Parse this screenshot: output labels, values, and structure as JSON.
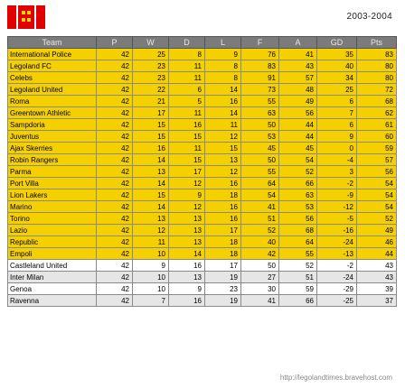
{
  "season": "2003-2004",
  "credit": "http://legolandtimes.bravehost.com",
  "logo": {
    "icon": "lego-brick-logo-icon",
    "color": "#e00000",
    "stud_color": "#ffd200"
  },
  "headers": [
    "Team",
    "P",
    "W",
    "D",
    "L",
    "F",
    "A",
    "GD",
    "Pts"
  ],
  "rows": [
    {
      "style": "yel",
      "cells": [
        "International Police",
        "42",
        "25",
        "8",
        "9",
        "76",
        "41",
        "35",
        "83"
      ]
    },
    {
      "style": "yel",
      "cells": [
        "Legoland FC",
        "42",
        "23",
        "11",
        "8",
        "83",
        "43",
        "40",
        "80"
      ]
    },
    {
      "style": "yel",
      "cells": [
        "Celebs",
        "42",
        "23",
        "11",
        "8",
        "91",
        "57",
        "34",
        "80"
      ]
    },
    {
      "style": "yel",
      "cells": [
        "Legoland United",
        "42",
        "22",
        "6",
        "14",
        "73",
        "48",
        "25",
        "72"
      ]
    },
    {
      "style": "yel",
      "cells": [
        "Roma",
        "42",
        "21",
        "5",
        "16",
        "55",
        "49",
        "6",
        "68"
      ]
    },
    {
      "style": "yel",
      "cells": [
        "Greentown Athletic",
        "42",
        "17",
        "11",
        "14",
        "63",
        "56",
        "7",
        "62"
      ]
    },
    {
      "style": "yel",
      "cells": [
        "Sampdoria",
        "42",
        "15",
        "16",
        "11",
        "50",
        "44",
        "6",
        "61"
      ]
    },
    {
      "style": "yel",
      "cells": [
        "Juventus",
        "42",
        "15",
        "15",
        "12",
        "53",
        "44",
        "9",
        "60"
      ]
    },
    {
      "style": "yel",
      "cells": [
        "Ajax Skerries",
        "42",
        "16",
        "11",
        "15",
        "45",
        "45",
        "0",
        "59"
      ]
    },
    {
      "style": "yel",
      "cells": [
        "Robin Rangers",
        "42",
        "14",
        "15",
        "13",
        "50",
        "54",
        "-4",
        "57"
      ]
    },
    {
      "style": "yel",
      "cells": [
        "Parma",
        "42",
        "13",
        "17",
        "12",
        "55",
        "52",
        "3",
        "56"
      ]
    },
    {
      "style": "yel",
      "cells": [
        "Port Villa",
        "42",
        "14",
        "12",
        "16",
        "64",
        "66",
        "-2",
        "54"
      ]
    },
    {
      "style": "yel",
      "cells": [
        "Lion Lakers",
        "42",
        "15",
        "9",
        "18",
        "54",
        "63",
        "-9",
        "54"
      ]
    },
    {
      "style": "yel",
      "cells": [
        "Marino",
        "42",
        "14",
        "12",
        "16",
        "41",
        "53",
        "-12",
        "54"
      ]
    },
    {
      "style": "yel",
      "cells": [
        "Torino",
        "42",
        "13",
        "13",
        "16",
        "51",
        "56",
        "-5",
        "52"
      ]
    },
    {
      "style": "yel",
      "cells": [
        "Lazio",
        "42",
        "12",
        "13",
        "17",
        "52",
        "68",
        "-16",
        "49"
      ]
    },
    {
      "style": "yel",
      "cells": [
        "Republic",
        "42",
        "11",
        "13",
        "18",
        "40",
        "64",
        "-24",
        "46"
      ]
    },
    {
      "style": "yel",
      "cells": [
        "Empoli",
        "42",
        "10",
        "14",
        "18",
        "42",
        "55",
        "-13",
        "44"
      ]
    },
    {
      "style": "white",
      "cells": [
        "Castleland United",
        "42",
        "9",
        "16",
        "17",
        "50",
        "52",
        "-2",
        "43"
      ]
    },
    {
      "style": "grey",
      "cells": [
        "Inter Milan",
        "42",
        "10",
        "13",
        "19",
        "27",
        "51",
        "-24",
        "43"
      ]
    },
    {
      "style": "white",
      "cells": [
        "Genoa",
        "42",
        "10",
        "9",
        "23",
        "30",
        "59",
        "-29",
        "39"
      ]
    },
    {
      "style": "grey",
      "cells": [
        "Ravenna",
        "42",
        "7",
        "16",
        "19",
        "41",
        "66",
        "-25",
        "37"
      ]
    }
  ]
}
